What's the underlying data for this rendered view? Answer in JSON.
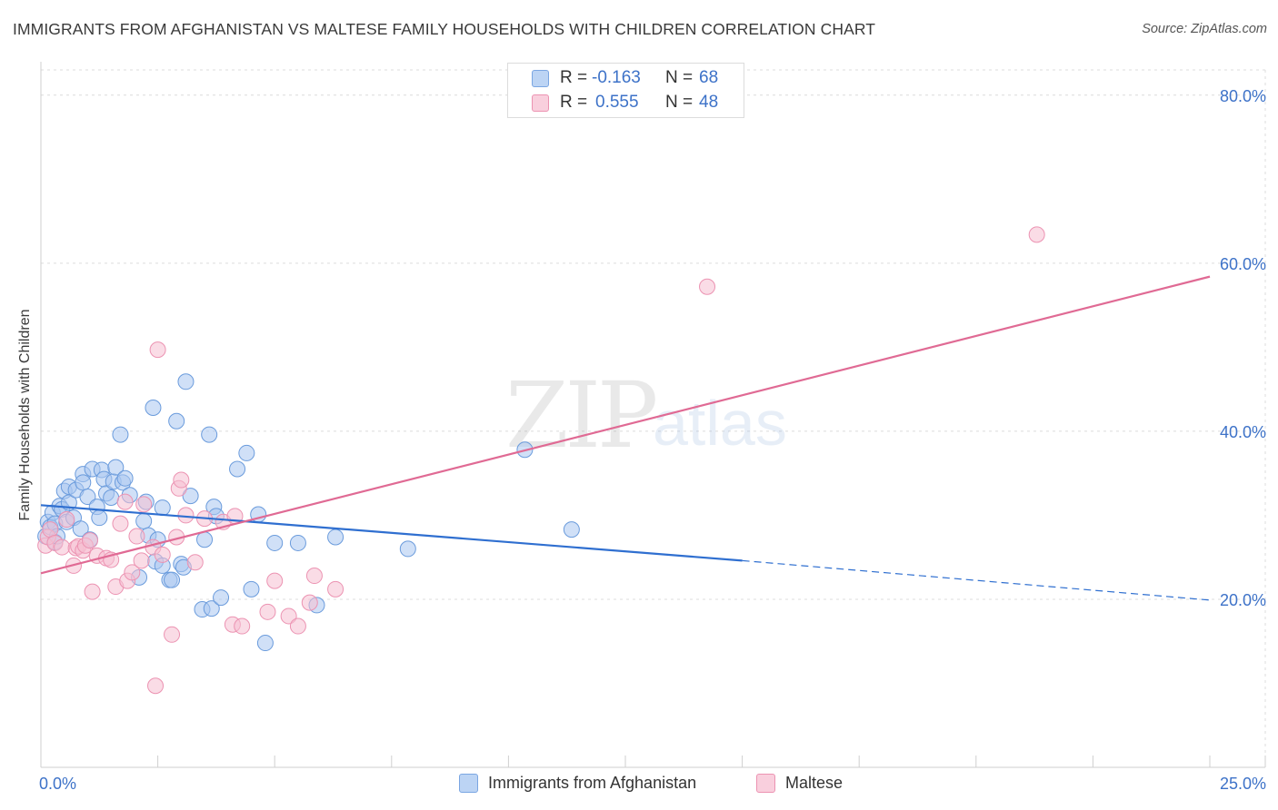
{
  "header": {
    "title": "IMMIGRANTS FROM AFGHANISTAN VS MALTESE FAMILY HOUSEHOLDS WITH CHILDREN CORRELATION CHART",
    "source": "Source: ZipAtlas.com"
  },
  "watermark": {
    "zip": "ZIP",
    "atlas": "atlas"
  },
  "stats_legend": {
    "rows": [
      {
        "r_label": "R =",
        "r_value": "-0.163",
        "n_label": "N =",
        "n_value": "68",
        "color": "#a9c7f0",
        "stroke": "#7aa6e2"
      },
      {
        "r_label": "R =",
        "r_value": "0.555",
        "n_label": "N =",
        "n_value": "48",
        "color": "#f6bfd2",
        "stroke": "#ec93b2"
      }
    ]
  },
  "bottom_legend": [
    {
      "label": "Immigrants from Afghanistan",
      "color": "#a9c7f0",
      "stroke": "#7aa6e2"
    },
    {
      "label": "Maltese",
      "color": "#f6bfd2",
      "stroke": "#ec93b2"
    }
  ],
  "chart_data": {
    "type": "scatter",
    "title": "IMMIGRANTS FROM AFGHANISTAN VS MALTESE FAMILY HOUSEHOLDS WITH CHILDREN CORRELATION CHART",
    "xlabel": "",
    "ylabel": "Family Households with Children",
    "xlim": [
      0,
      25
    ],
    "ylim": [
      0,
      83
    ],
    "x_tick_labels": [
      {
        "value": 0,
        "label": "0.0%"
      },
      {
        "value": 25,
        "label": "25.0%"
      }
    ],
    "y_ticks": [
      {
        "value": 20,
        "label": "20.0%"
      },
      {
        "value": 40,
        "label": "40.0%"
      },
      {
        "value": 60,
        "label": "60.0%"
      },
      {
        "value": 80,
        "label": "80.0%"
      }
    ],
    "x_minor_ticks": [
      0,
      2.5,
      5,
      7.5,
      10,
      12.5,
      15,
      17.5,
      20,
      22.5,
      25
    ],
    "grid": true,
    "series": [
      {
        "name": "Immigrants from Afghanistan",
        "color": "#a9c7f0",
        "stroke": "#6a9bdc",
        "line_color": "#2f6fd0",
        "trend": {
          "x0": 0,
          "y0": 31.2,
          "x1": 15,
          "y1": 24.6,
          "dash_to_x": 25,
          "dash_to_y": 19.9
        },
        "points": [
          [
            0.1,
            27.5
          ],
          [
            0.15,
            29.2
          ],
          [
            0.2,
            28.6
          ],
          [
            0.25,
            30.3
          ],
          [
            0.3,
            29.0
          ],
          [
            0.3,
            26.8
          ],
          [
            0.35,
            27.5
          ],
          [
            0.4,
            31.1
          ],
          [
            0.45,
            30.7
          ],
          [
            0.5,
            32.9
          ],
          [
            0.55,
            29.2
          ],
          [
            0.6,
            31.5
          ],
          [
            0.6,
            33.4
          ],
          [
            0.7,
            29.7
          ],
          [
            0.75,
            33.0
          ],
          [
            0.85,
            28.4
          ],
          [
            0.9,
            34.9
          ],
          [
            0.9,
            33.9
          ],
          [
            1.0,
            32.2
          ],
          [
            1.05,
            27.1
          ],
          [
            1.1,
            35.5
          ],
          [
            1.2,
            31.0
          ],
          [
            1.25,
            29.7
          ],
          [
            1.3,
            35.4
          ],
          [
            1.35,
            34.3
          ],
          [
            1.4,
            32.6
          ],
          [
            1.5,
            32.1
          ],
          [
            1.55,
            34.0
          ],
          [
            1.6,
            35.7
          ],
          [
            1.7,
            39.6
          ],
          [
            1.75,
            33.9
          ],
          [
            1.8,
            34.4
          ],
          [
            1.9,
            32.4
          ],
          [
            2.1,
            22.6
          ],
          [
            2.2,
            29.3
          ],
          [
            2.25,
            31.6
          ],
          [
            2.3,
            27.6
          ],
          [
            2.4,
            42.8
          ],
          [
            2.45,
            24.5
          ],
          [
            2.5,
            27.1
          ],
          [
            2.6,
            24.0
          ],
          [
            2.6,
            30.9
          ],
          [
            2.75,
            22.3
          ],
          [
            2.8,
            22.3
          ],
          [
            2.9,
            41.2
          ],
          [
            3.0,
            24.2
          ],
          [
            3.05,
            23.8
          ],
          [
            3.1,
            45.9
          ],
          [
            3.2,
            32.3
          ],
          [
            3.45,
            18.8
          ],
          [
            3.5,
            27.1
          ],
          [
            3.6,
            39.6
          ],
          [
            3.65,
            18.9
          ],
          [
            3.7,
            31.0
          ],
          [
            3.75,
            29.9
          ],
          [
            3.85,
            20.2
          ],
          [
            4.2,
            35.5
          ],
          [
            4.4,
            37.4
          ],
          [
            4.5,
            21.2
          ],
          [
            4.65,
            30.1
          ],
          [
            4.8,
            14.8
          ],
          [
            5.0,
            26.7
          ],
          [
            5.5,
            26.7
          ],
          [
            5.9,
            19.3
          ],
          [
            7.85,
            26.0
          ],
          [
            10.35,
            37.8
          ],
          [
            11.35,
            28.3
          ],
          [
            6.3,
            27.4
          ]
        ]
      },
      {
        "name": "Maltese",
        "color": "#f6bfd2",
        "stroke": "#ec93b2",
        "line_color": "#e06a94",
        "trend": {
          "x0": 0,
          "y0": 23.1,
          "x1": 25,
          "y1": 58.4
        },
        "points": [
          [
            0.1,
            26.4
          ],
          [
            0.15,
            27.4
          ],
          [
            0.2,
            28.3
          ],
          [
            0.3,
            26.7
          ],
          [
            0.45,
            26.2
          ],
          [
            0.55,
            29.5
          ],
          [
            0.7,
            24.0
          ],
          [
            0.75,
            26.1
          ],
          [
            0.8,
            26.3
          ],
          [
            0.9,
            25.8
          ],
          [
            0.95,
            26.4
          ],
          [
            1.05,
            27.0
          ],
          [
            1.1,
            20.9
          ],
          [
            1.2,
            25.2
          ],
          [
            1.4,
            24.9
          ],
          [
            1.5,
            24.7
          ],
          [
            1.6,
            21.5
          ],
          [
            1.7,
            29.0
          ],
          [
            1.8,
            31.6
          ],
          [
            1.85,
            22.2
          ],
          [
            1.95,
            23.2
          ],
          [
            2.05,
            27.5
          ],
          [
            2.15,
            24.6
          ],
          [
            2.2,
            31.3
          ],
          [
            2.4,
            26.2
          ],
          [
            2.45,
            9.7
          ],
          [
            2.6,
            25.3
          ],
          [
            2.5,
            49.7
          ],
          [
            2.8,
            15.8
          ],
          [
            2.9,
            27.4
          ],
          [
            2.95,
            33.2
          ],
          [
            3.0,
            34.2
          ],
          [
            3.1,
            30.0
          ],
          [
            3.3,
            24.4
          ],
          [
            3.5,
            29.6
          ],
          [
            3.9,
            29.2
          ],
          [
            4.1,
            17.0
          ],
          [
            4.15,
            29.9
          ],
          [
            4.3,
            16.8
          ],
          [
            4.85,
            18.5
          ],
          [
            5.0,
            22.2
          ],
          [
            5.3,
            18.0
          ],
          [
            5.5,
            16.8
          ],
          [
            5.75,
            19.6
          ],
          [
            5.85,
            22.8
          ],
          [
            6.3,
            21.2
          ],
          [
            14.25,
            57.2
          ],
          [
            21.3,
            63.4
          ]
        ]
      }
    ]
  }
}
